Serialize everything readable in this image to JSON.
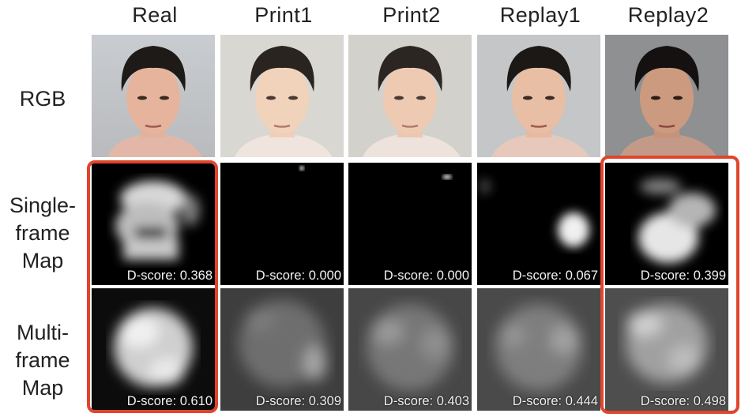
{
  "columns": [
    {
      "label": "Real",
      "single_score": "D-score: 0.368",
      "multi_score": "D-score: 0.610"
    },
    {
      "label": "Print1",
      "single_score": "D-score: 0.000",
      "multi_score": "D-score: 0.309"
    },
    {
      "label": "Print2",
      "single_score": "D-score: 0.000",
      "multi_score": "D-score: 0.403"
    },
    {
      "label": "Replay1",
      "single_score": "D-score: 0.067",
      "multi_score": "D-score: 0.444"
    },
    {
      "label": "Replay2",
      "single_score": "D-score: 0.399",
      "multi_score": "D-score: 0.498"
    }
  ],
  "rows": {
    "rgb": {
      "line1": "RGB"
    },
    "single": {
      "line1": "Single-",
      "line2": "frame",
      "line3": "Map"
    },
    "multi": {
      "line1": "Multi-",
      "line2": "frame",
      "line3": "Map"
    }
  },
  "colors": {
    "highlight": "#e0452c"
  }
}
